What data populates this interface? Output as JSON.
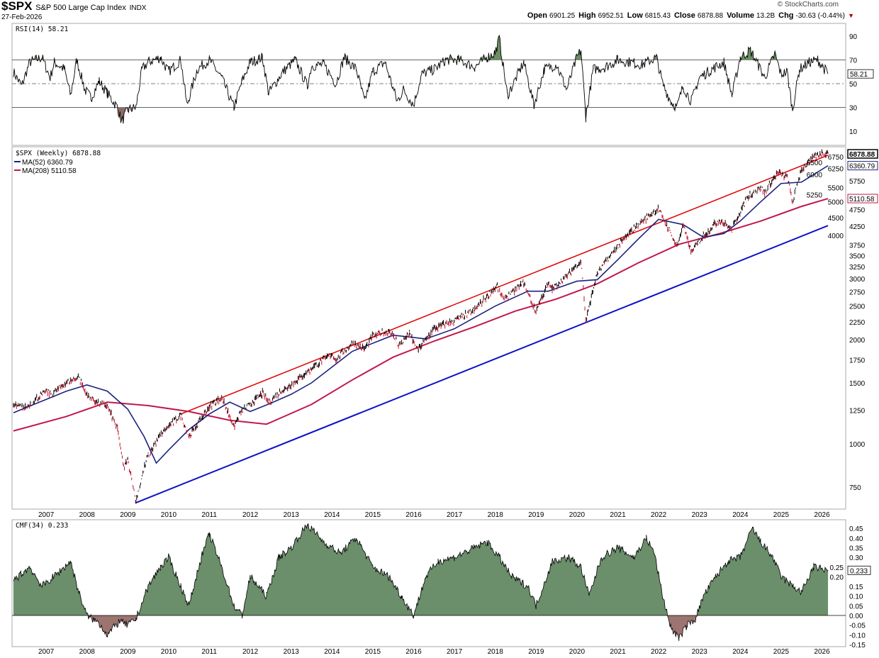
{
  "header": {
    "symbol": "$SPX",
    "name": "S&P 500 Large Cap Index",
    "exchange": "INDX",
    "date": "27-Feb-2026",
    "brand": "© StockCharts.com",
    "ohlc": [
      {
        "k": "Open",
        "v": "6901.25"
      },
      {
        "k": "High",
        "v": "6952.51"
      },
      {
        "k": "Low",
        "v": "6815.43"
      },
      {
        "k": "Close",
        "v": "6878.88"
      },
      {
        "k": "Volume",
        "v": "13.2B"
      },
      {
        "k": "Chg",
        "v": "-30.63 (-0.44%)"
      }
    ]
  },
  "colors": {
    "price": "#000000",
    "ma52": "#1a237e",
    "ma208": "#c2184b",
    "red_trend": "#e01010",
    "blue_trend": "#1010c8",
    "rsi_fill": "#6b8e62",
    "cmf_pos": "#6b8e6b",
    "cmf_neg": "#9c7470"
  },
  "chart_data": [
    {
      "type": "line",
      "title": "RSI(14) 58.21",
      "legend": "RSI(14) 58.21",
      "last_label": "58.21",
      "ylim": [
        0,
        100
      ],
      "yticks": [
        10,
        30,
        50,
        70,
        90
      ],
      "levels": [
        30,
        50,
        70
      ],
      "x": [
        2006.2,
        2006.4,
        2006.6,
        2006.9,
        2007.1,
        2007.2,
        2007.45,
        2007.6,
        2007.75,
        2007.95,
        2008.1,
        2008.3,
        2008.5,
        2008.75,
        2008.85,
        2009.0,
        2009.2,
        2009.35,
        2009.5,
        2009.8,
        2010.0,
        2010.3,
        2010.45,
        2010.7,
        2011.0,
        2011.3,
        2011.6,
        2011.8,
        2012.0,
        2012.3,
        2012.45,
        2012.8,
        2013.1,
        2013.4,
        2013.5,
        2013.8,
        2014.1,
        2014.3,
        2014.6,
        2014.8,
        2015.0,
        2015.3,
        2015.6,
        2015.75,
        2016.0,
        2016.2,
        2016.5,
        2016.8,
        2017.1,
        2017.5,
        2017.8,
        2018.0,
        2018.1,
        2018.3,
        2018.7,
        2018.95,
        2019.2,
        2019.5,
        2019.75,
        2020.0,
        2020.1,
        2020.22,
        2020.4,
        2020.7,
        2021.0,
        2021.3,
        2021.6,
        2021.95,
        2022.1,
        2022.3,
        2022.45,
        2022.6,
        2022.8,
        2023.0,
        2023.3,
        2023.6,
        2023.8,
        2024.0,
        2024.25,
        2024.45,
        2024.6,
        2024.85,
        2025.0,
        2025.15,
        2025.28,
        2025.45,
        2025.7,
        2025.9,
        2026.15
      ],
      "y": [
        60,
        48,
        68,
        72,
        55,
        68,
        62,
        40,
        70,
        45,
        38,
        52,
        42,
        30,
        18,
        28,
        30,
        62,
        68,
        72,
        60,
        70,
        32,
        62,
        70,
        55,
        30,
        52,
        68,
        72,
        42,
        60,
        70,
        48,
        65,
        66,
        50,
        72,
        62,
        35,
        60,
        68,
        35,
        45,
        32,
        58,
        62,
        70,
        70,
        64,
        72,
        76,
        88,
        40,
        68,
        32,
        62,
        66,
        45,
        72,
        78,
        22,
        62,
        64,
        70,
        68,
        66,
        72,
        50,
        35,
        30,
        48,
        35,
        55,
        62,
        68,
        40,
        72,
        78,
        65,
        55,
        75,
        58,
        60,
        28,
        62,
        68,
        70,
        58.21
      ]
    },
    {
      "type": "line",
      "title": "$SPX (Weekly) 6878.88",
      "scale": "log",
      "ylim": [
        650,
        7400
      ],
      "yticks": [
        750,
        1000,
        1250,
        1500,
        1750,
        2000,
        2250,
        2500,
        2750,
        3000,
        3250,
        3500,
        3750,
        4000,
        4250,
        4500,
        4750,
        5000,
        5250,
        5500,
        5750,
        6000,
        6250,
        6500,
        6750
      ],
      "xticks": [
        "2007",
        "2008",
        "2009",
        "2010",
        "2011",
        "2012",
        "2013",
        "2014",
        "2015",
        "2016",
        "2017",
        "2018",
        "2019",
        "2020",
        "2021",
        "2022",
        "2023",
        "2024",
        "2025",
        "2026"
      ],
      "series": [
        {
          "name": "$SPX (Weekly) 6878.88",
          "last": "6878.88",
          "x": [
            2006.2,
            2006.5,
            2007.0,
            2007.15,
            2007.5,
            2007.8,
            2008.0,
            2008.2,
            2008.5,
            2008.75,
            2008.9,
            2009.0,
            2009.2,
            2009.5,
            2009.8,
            2010.0,
            2010.3,
            2010.5,
            2010.8,
            2011.0,
            2011.3,
            2011.6,
            2011.8,
            2012.0,
            2012.3,
            2012.45,
            2012.8,
            2013.0,
            2013.5,
            2014.0,
            2014.1,
            2014.5,
            2014.8,
            2015.0,
            2015.4,
            2015.65,
            2015.9,
            2016.1,
            2016.5,
            2017.0,
            2017.5,
            2018.05,
            2018.2,
            2018.7,
            2018.98,
            2019.3,
            2019.4,
            2019.8,
            2020.1,
            2020.22,
            2020.5,
            2020.9,
            2021.5,
            2021.99,
            2022.45,
            2022.6,
            2022.8,
            2023.1,
            2023.5,
            2023.8,
            2024.2,
            2024.5,
            2024.6,
            2024.9,
            2025.15,
            2025.28,
            2025.5,
            2025.8,
            2026.0,
            2026.15
          ],
          "y": [
            1290,
            1270,
            1420,
            1390,
            1500,
            1560,
            1380,
            1330,
            1280,
            1100,
            850,
            900,
            680,
            930,
            1060,
            1120,
            1210,
            1050,
            1180,
            1280,
            1360,
            1120,
            1250,
            1300,
            1400,
            1320,
            1430,
            1480,
            1650,
            1820,
            1750,
            1960,
            1880,
            2050,
            2120,
            1920,
            2080,
            1860,
            2150,
            2270,
            2430,
            2860,
            2600,
            2920,
            2400,
            2900,
            2800,
            3100,
            3380,
            2240,
            3100,
            3600,
            4300,
            4770,
            3700,
            4280,
            3580,
            4000,
            4450,
            4150,
            5200,
            5500,
            5300,
            6050,
            5900,
            4980,
            6200,
            6700,
            6900,
            6878.88
          ]
        },
        {
          "name": "MA(52) 6360.79",
          "last": "6360.79",
          "x": [
            2006.2,
            2007.5,
            2008.0,
            2008.5,
            2009.0,
            2009.4,
            2009.7,
            2010.0,
            2010.5,
            2011.0,
            2011.5,
            2012.0,
            2012.5,
            2013.0,
            2013.5,
            2014.5,
            2015.5,
            2016.3,
            2017.0,
            2018.0,
            2018.8,
            2019.3,
            2020.0,
            2020.5,
            2021.0,
            2021.5,
            2022.0,
            2022.6,
            2023.1,
            2023.6,
            2024.0,
            2024.5,
            2025.0,
            2025.5,
            2026.15
          ],
          "y": [
            1230,
            1420,
            1480,
            1420,
            1260,
            1050,
            880,
            960,
            1100,
            1220,
            1320,
            1240,
            1310,
            1390,
            1500,
            1850,
            2060,
            2010,
            2150,
            2500,
            2760,
            2760,
            2950,
            2980,
            3400,
            3900,
            4450,
            4300,
            3950,
            4050,
            4400,
            5000,
            5650,
            5700,
            6360.79
          ]
        },
        {
          "name": "MA(208) 5110.58",
          "last": "5110.58",
          "x": [
            2006.2,
            2007.5,
            2008.5,
            2009.5,
            2010.5,
            2011.5,
            2012.4,
            2013.5,
            2014.5,
            2015.5,
            2016.5,
            2017.5,
            2018.5,
            2019.5,
            2020.5,
            2021.5,
            2022.5,
            2023.5,
            2024.5,
            2025.5,
            2026.15
          ],
          "y": [
            1090,
            1200,
            1320,
            1290,
            1240,
            1170,
            1140,
            1300,
            1530,
            1780,
            1980,
            2180,
            2420,
            2620,
            2900,
            3330,
            3770,
            4050,
            4400,
            4850,
            5110.58
          ]
        },
        {
          "name": "Upper trendline (red)",
          "x": [
            2010.3,
            2026.15
          ],
          "y": [
            1220,
            6820
          ]
        },
        {
          "name": "Lower trendline (blue)",
          "x": [
            2009.2,
            2026.15
          ],
          "y": [
            676,
            4270
          ]
        }
      ]
    },
    {
      "type": "area",
      "title": "CMF(34) 0.233",
      "legend": "CMF(34) 0.233",
      "last_label": "0.233",
      "ylim": [
        -0.17,
        0.48
      ],
      "yticks": [
        -0.15,
        -0.1,
        -0.05,
        0.0,
        0.05,
        0.1,
        0.15,
        0.2,
        0.25,
        0.3,
        0.35,
        0.4,
        0.45
      ],
      "x": [
        2006.2,
        2006.6,
        2006.9,
        2007.3,
        2007.6,
        2007.8,
        2008.0,
        2008.3,
        2008.5,
        2008.8,
        2009.0,
        2009.2,
        2009.5,
        2009.8,
        2010.0,
        2010.3,
        2010.5,
        2010.8,
        2011.0,
        2011.3,
        2011.6,
        2011.8,
        2012.0,
        2012.4,
        2012.7,
        2013.0,
        2013.4,
        2013.8,
        2014.2,
        2014.6,
        2015.0,
        2015.4,
        2015.7,
        2016.0,
        2016.3,
        2016.6,
        2017.0,
        2017.5,
        2017.8,
        2018.1,
        2018.4,
        2018.8,
        2019.0,
        2019.4,
        2019.8,
        2020.1,
        2020.3,
        2020.6,
        2021.0,
        2021.4,
        2021.7,
        2021.9,
        2022.1,
        2022.3,
        2022.5,
        2022.7,
        2022.9,
        2023.1,
        2023.4,
        2023.7,
        2024.0,
        2024.3,
        2024.5,
        2024.8,
        2025.0,
        2025.3,
        2025.5,
        2025.8,
        2026.15
      ],
      "y": [
        0.18,
        0.25,
        0.15,
        0.22,
        0.28,
        0.12,
        0.0,
        -0.04,
        -0.1,
        -0.03,
        -0.05,
        -0.02,
        0.15,
        0.25,
        0.3,
        0.15,
        0.05,
        0.3,
        0.42,
        0.25,
        0.05,
        0.0,
        0.2,
        0.1,
        0.3,
        0.35,
        0.47,
        0.38,
        0.32,
        0.4,
        0.25,
        0.2,
        0.1,
        0.0,
        0.2,
        0.28,
        0.3,
        0.35,
        0.38,
        0.3,
        0.2,
        0.15,
        0.05,
        0.28,
        0.3,
        0.25,
        0.1,
        0.3,
        0.35,
        0.3,
        0.4,
        0.32,
        0.1,
        -0.06,
        -0.12,
        -0.05,
        -0.02,
        0.1,
        0.2,
        0.28,
        0.3,
        0.45,
        0.38,
        0.3,
        0.2,
        0.15,
        0.12,
        0.25,
        0.233
      ]
    }
  ]
}
